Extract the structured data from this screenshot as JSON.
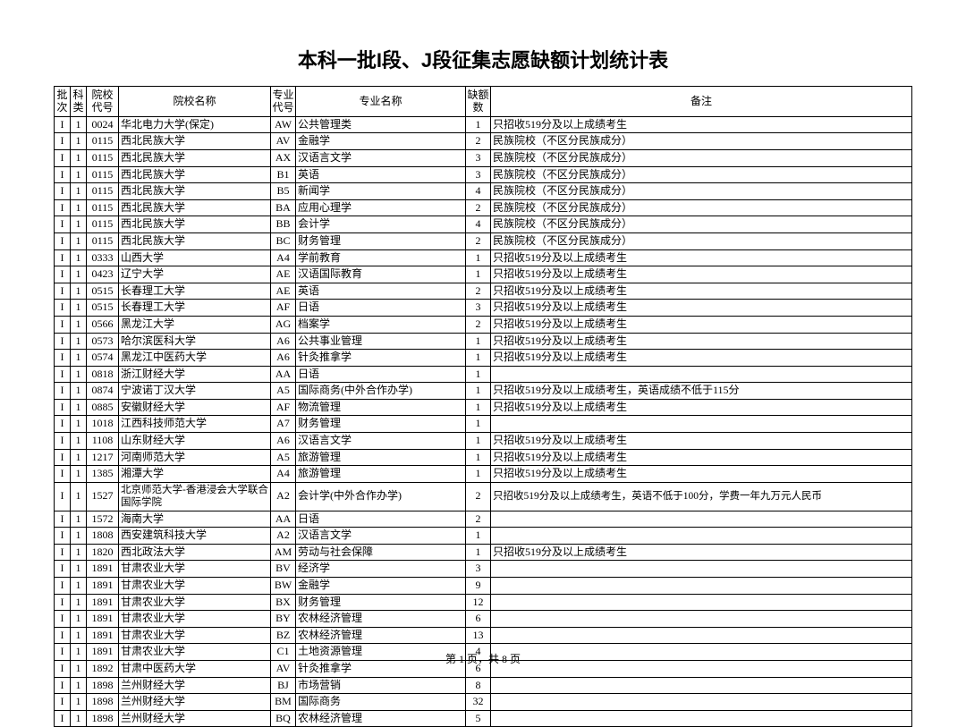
{
  "title": "本科一批I段、J段征集志愿缺额计划统计表",
  "columns": [
    "批次",
    "科类",
    "院校代号",
    "院校名称",
    "专业代号",
    "专业名称",
    "缺额数",
    "备注"
  ],
  "footer": "第 1 页，共 8 页",
  "rows": [
    [
      "I",
      "1",
      "0024",
      "华北电力大学(保定)",
      "AW",
      "公共管理类",
      "1",
      "只招收519分及以上成绩考生"
    ],
    [
      "I",
      "1",
      "0115",
      "西北民族大学",
      "AV",
      "金融学",
      "2",
      "民族院校（不区分民族成分）"
    ],
    [
      "I",
      "1",
      "0115",
      "西北民族大学",
      "AX",
      "汉语言文学",
      "3",
      "民族院校（不区分民族成分）"
    ],
    [
      "I",
      "1",
      "0115",
      "西北民族大学",
      "B1",
      "英语",
      "3",
      "民族院校（不区分民族成分）"
    ],
    [
      "I",
      "1",
      "0115",
      "西北民族大学",
      "B5",
      "新闻学",
      "4",
      "民族院校（不区分民族成分）"
    ],
    [
      "I",
      "1",
      "0115",
      "西北民族大学",
      "BA",
      "应用心理学",
      "2",
      "民族院校（不区分民族成分）"
    ],
    [
      "I",
      "1",
      "0115",
      "西北民族大学",
      "BB",
      "会计学",
      "4",
      "民族院校（不区分民族成分）"
    ],
    [
      "I",
      "1",
      "0115",
      "西北民族大学",
      "BC",
      "财务管理",
      "2",
      "民族院校（不区分民族成分）"
    ],
    [
      "I",
      "1",
      "0333",
      "山西大学",
      "A4",
      "学前教育",
      "1",
      "只招收519分及以上成绩考生"
    ],
    [
      "I",
      "1",
      "0423",
      "辽宁大学",
      "AE",
      "汉语国际教育",
      "1",
      "只招收519分及以上成绩考生"
    ],
    [
      "I",
      "1",
      "0515",
      "长春理工大学",
      "AE",
      "英语",
      "2",
      "只招收519分及以上成绩考生"
    ],
    [
      "I",
      "1",
      "0515",
      "长春理工大学",
      "AF",
      "日语",
      "3",
      "只招收519分及以上成绩考生"
    ],
    [
      "I",
      "1",
      "0566",
      "黑龙江大学",
      "AG",
      "档案学",
      "2",
      "只招收519分及以上成绩考生"
    ],
    [
      "I",
      "1",
      "0573",
      "哈尔滨医科大学",
      "A6",
      "公共事业管理",
      "1",
      "只招收519分及以上成绩考生"
    ],
    [
      "I",
      "1",
      "0574",
      "黑龙江中医药大学",
      "A6",
      "针灸推拿学",
      "1",
      "只招收519分及以上成绩考生"
    ],
    [
      "I",
      "1",
      "0818",
      "浙江财经大学",
      "AA",
      "日语",
      "1",
      ""
    ],
    [
      "I",
      "1",
      "0874",
      "宁波诺丁汉大学",
      "A5",
      "国际商务(中外合作办学)",
      "1",
      "只招收519分及以上成绩考生，英语成绩不低于115分"
    ],
    [
      "I",
      "1",
      "0885",
      "安徽财经大学",
      "AF",
      "物流管理",
      "1",
      "只招收519分及以上成绩考生"
    ],
    [
      "I",
      "1",
      "1018",
      "江西科技师范大学",
      "A7",
      "财务管理",
      "1",
      ""
    ],
    [
      "I",
      "1",
      "1108",
      "山东财经大学",
      "A6",
      "汉语言文学",
      "1",
      "只招收519分及以上成绩考生"
    ],
    [
      "I",
      "1",
      "1217",
      "河南师范大学",
      "A5",
      "旅游管理",
      "1",
      "只招收519分及以上成绩考生"
    ],
    [
      "I",
      "1",
      "1385",
      "湘潭大学",
      "A4",
      "旅游管理",
      "1",
      "只招收519分及以上成绩考生"
    ],
    [
      "I",
      "1",
      "1527",
      "北京师范大学-香港浸会大学联合国际学院",
      "A2",
      "会计学(中外合作办学)",
      "2",
      "只招收519分及以上成绩考生，英语不低于100分，学费一年九万元人民币"
    ],
    [
      "I",
      "1",
      "1572",
      "海南大学",
      "AA",
      "日语",
      "2",
      ""
    ],
    [
      "I",
      "1",
      "1808",
      "西安建筑科技大学",
      "A2",
      "汉语言文学",
      "1",
      ""
    ],
    [
      "I",
      "1",
      "1820",
      "西北政法大学",
      "AM",
      "劳动与社会保障",
      "1",
      "只招收519分及以上成绩考生"
    ],
    [
      "I",
      "1",
      "1891",
      "甘肃农业大学",
      "BV",
      "经济学",
      "3",
      ""
    ],
    [
      "I",
      "1",
      "1891",
      "甘肃农业大学",
      "BW",
      "金融学",
      "9",
      ""
    ],
    [
      "I",
      "1",
      "1891",
      "甘肃农业大学",
      "BX",
      "财务管理",
      "12",
      ""
    ],
    [
      "I",
      "1",
      "1891",
      "甘肃农业大学",
      "BY",
      "农林经济管理",
      "6",
      ""
    ],
    [
      "I",
      "1",
      "1891",
      "甘肃农业大学",
      "BZ",
      "农林经济管理",
      "13",
      ""
    ],
    [
      "I",
      "1",
      "1891",
      "甘肃农业大学",
      "C1",
      "土地资源管理",
      "4",
      ""
    ],
    [
      "I",
      "1",
      "1892",
      "甘肃中医药大学",
      "AV",
      "针灸推拿学",
      "6",
      ""
    ],
    [
      "I",
      "1",
      "1898",
      "兰州财经大学",
      "BJ",
      "市场营销",
      "8",
      ""
    ],
    [
      "I",
      "1",
      "1898",
      "兰州财经大学",
      "BM",
      "国际商务",
      "32",
      ""
    ],
    [
      "I",
      "1",
      "1898",
      "兰州财经大学",
      "BQ",
      "农林经济管理",
      "5",
      ""
    ]
  ]
}
